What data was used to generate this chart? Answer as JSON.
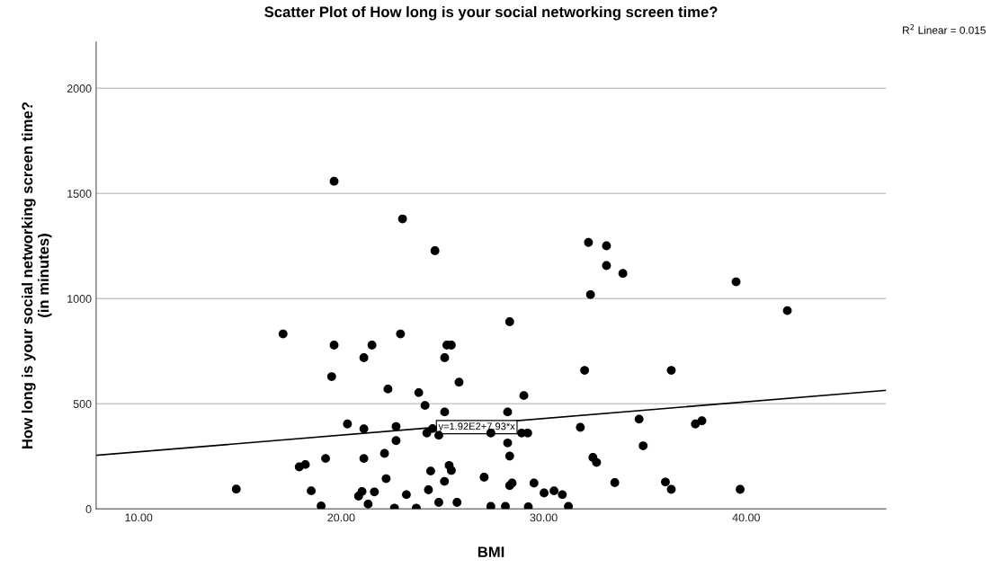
{
  "chart_data": {
    "type": "scatter",
    "title": "Scatter Plot of How long is your social networking screen time?",
    "xlabel": "BMI",
    "ylabel": "How long is your social networking screen time?\n(in minutes)",
    "xlim": [
      7.9,
      46.9
    ],
    "ylim": [
      0,
      2220
    ],
    "xticks": [
      {
        "value": 10,
        "label": "10.00"
      },
      {
        "value": 20,
        "label": "20.00"
      },
      {
        "value": 30,
        "label": "30.00"
      },
      {
        "value": 40,
        "label": "40.00"
      }
    ],
    "yticks": [
      0,
      500,
      1000,
      1500,
      2000
    ],
    "grid": "y",
    "marker": "circle",
    "annotations": [
      "R$^{2}$ Linear = 0.015",
      {
        "text": "y=1.92E2+7.93*x",
        "x": 24.8,
        "y": 389
      }
    ],
    "series": [
      {
        "color": "#000000",
        "x": [
          17.13,
          19.65,
          21.52,
          22.93,
          25.22,
          25.44,
          21.12,
          25.11,
          19.53,
          25.82,
          22.31,
          23.83,
          24.14,
          20.31,
          21.12,
          22.71,
          22.71,
          24.23,
          24.51,
          24.82,
          19.23,
          21.12,
          22.14,
          17.93,
          18.23,
          24.42,
          25.33,
          25.44,
          22.22,
          25.1,
          27.06,
          14.82,
          18.52,
          20.86,
          21.03,
          21.64,
          23.22,
          24.31,
          19.01,
          21.33,
          22.63,
          23.71,
          24.82,
          25.72,
          19.65,
          23.03,
          24.63,
          25.11,
          28.22,
          32.21,
          33.1,
          33.1,
          33.91,
          32.31,
          39.5,
          28.32,
          32.02,
          36.3,
          29.02,
          27.39,
          28.91,
          29.21,
          31.81,
          34.71,
          37.49,
          37.81,
          28.22,
          28.32,
          34.91,
          32.43,
          32.61,
          28.32,
          28.44,
          29.52,
          30.02,
          30.51,
          30.92,
          33.51,
          36.01,
          36.3,
          39.7,
          27.39,
          28.11,
          29.24,
          31.22,
          42.03
        ],
        "values": [
          832,
          779,
          779,
          832,
          779,
          779,
          719,
          719,
          629,
          603,
          570,
          553,
          492,
          404,
          381,
          392,
          325,
          361,
          382,
          350,
          240,
          240,
          264,
          200,
          211,
          180,
          207,
          183,
          144,
          131,
          151,
          94,
          86,
          61,
          83,
          81,
          68,
          91,
          14,
          23,
          4,
          4,
          31,
          31,
          1558,
          1379,
          1228,
          461,
          461,
          1267,
          1251,
          1157,
          1120,
          1019,
          1080,
          890,
          659,
          659,
          539,
          361,
          361,
          361,
          388,
          427,
          404,
          419,
          314,
          251,
          300,
          245,
          221,
          111,
          123,
          123,
          76,
          86,
          68,
          125,
          128,
          93,
          93,
          12,
          12,
          10,
          12,
          943
        ]
      },
      {
        "type": "line",
        "color": "#000000",
        "marker": "none",
        "x": [
          7.9,
          46.9
        ],
        "values": [
          255,
          564
        ]
      }
    ]
  }
}
